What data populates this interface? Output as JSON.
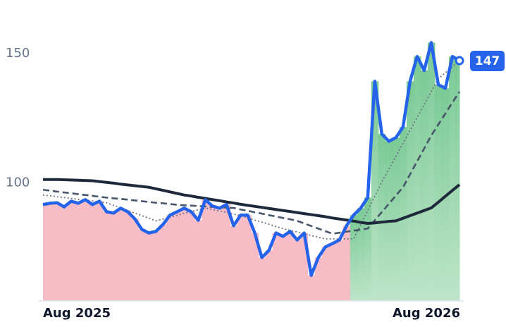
{
  "chart_data": {
    "type": "line",
    "categories": [
      "Aug 2025",
      null,
      null,
      null,
      null,
      null,
      null,
      null,
      null,
      null,
      null,
      null,
      null,
      null,
      null,
      null,
      null,
      null,
      null,
      null,
      null,
      null,
      null,
      null,
      null,
      null,
      null,
      null,
      null,
      null,
      null,
      null,
      null,
      null,
      null,
      null,
      null,
      null,
      null,
      null,
      null,
      null,
      null,
      null,
      null,
      null,
      null,
      null,
      null,
      null,
      null,
      null,
      null,
      null,
      null,
      null,
      null,
      null,
      null,
      "Aug 2026"
    ],
    "series": [
      {
        "color": "#2563eb",
        "style": "solid",
        "values": [
          91.3,
          91.8,
          92,
          90.4,
          92.6,
          91.8,
          93.2,
          91.3,
          92.6,
          88.5,
          88,
          89.9,
          88.5,
          85.8,
          81.7,
          80.3,
          80.9,
          83.6,
          87.2,
          88.5,
          89.9,
          88.5,
          85.2,
          93.2,
          90.7,
          89.9,
          91.3,
          83.1,
          87.2,
          87.2,
          80.3,
          70.8,
          73.5,
          80.3,
          79,
          80.9,
          77.6,
          80.3,
          63.9,
          70.8,
          74.9,
          76.2,
          77.6,
          83.1,
          87.2,
          89.9,
          94,
          139,
          118.6,
          115.8,
          117.2,
          121.3,
          139,
          148.6,
          143.2,
          154,
          137.7,
          136.3,
          148.6,
          147
        ]
      },
      {
        "color": "#6b7280",
        "style": "dotted",
        "values": [
          95,
          94.7,
          94.3,
          94,
          93.7,
          93.3,
          93,
          92.7,
          92.3,
          92,
          91,
          90,
          89,
          88,
          87,
          86,
          85,
          85.7,
          86.4,
          87.1,
          87.9,
          88.6,
          89.3,
          90,
          89.4,
          88.8,
          88.2,
          87.6,
          87,
          86.2,
          85.3,
          84.5,
          83.7,
          82.8,
          82,
          81.3,
          80.7,
          80,
          79.3,
          78.7,
          78,
          78,
          78,
          78,
          78,
          83.5,
          89,
          94.5,
          100,
          105,
          110,
          115,
          120,
          125,
          130,
          135,
          140,
          142.3,
          144.7,
          147
        ]
      },
      {
        "color": "#475569",
        "style": "dashed",
        "values": [
          97,
          96.7,
          96.3,
          96,
          95.7,
          95.3,
          95,
          94.7,
          94.3,
          94,
          93.7,
          93.5,
          93.2,
          92.9,
          92.6,
          92.3,
          92,
          91.8,
          91.5,
          91.2,
          91,
          90.9,
          90.7,
          90.6,
          90.4,
          90.3,
          90.1,
          90,
          89.4,
          88.9,
          88.3,
          87.8,
          87.2,
          86.7,
          86.1,
          85.6,
          85,
          84,
          83,
          82,
          81,
          80,
          80.4,
          80.8,
          81.2,
          81.6,
          82,
          85.2,
          88.4,
          91.6,
          94.8,
          98,
          103,
          108,
          113,
          118,
          122.3,
          126.5,
          130.8,
          135
        ]
      },
      {
        "color": "#1e293b",
        "style": "solid",
        "values": [
          101,
          101,
          101,
          100.9,
          100.8,
          100.7,
          100.6,
          100.5,
          100.2,
          99.9,
          99.6,
          99.2,
          98.9,
          98.6,
          98.3,
          98,
          97.4,
          96.8,
          96.2,
          95.6,
          95,
          94.6,
          94.1,
          93.7,
          93.2,
          92.8,
          92.3,
          91.9,
          91.4,
          91,
          90.6,
          90.2,
          89.8,
          89.4,
          89,
          88.6,
          88.2,
          87.8,
          87.4,
          87,
          86.6,
          86.1,
          85.7,
          85.3,
          84.9,
          84.4,
          84,
          84.2,
          84.5,
          84.8,
          85,
          86,
          87,
          88,
          89,
          90,
          92.2,
          94.5,
          96.8,
          99
        ]
      }
    ],
    "ylim": [
      54,
      160
    ],
    "yticks": [
      100,
      150
    ],
    "grid": false,
    "up_color": "#6cc48a",
    "down_color": "#f8bcc6"
  }
}
